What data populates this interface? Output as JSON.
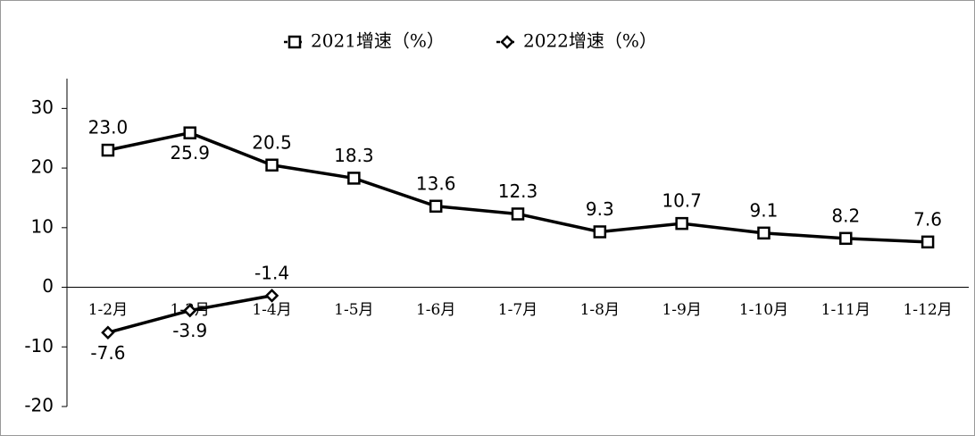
{
  "chart_data": {
    "type": "line",
    "categories": [
      "1-2月",
      "1-3月",
      "1-4月",
      "1-5月",
      "1-6月",
      "1-7月",
      "1-8月",
      "1-9月",
      "1-10月",
      "1-11月",
      "1-12月"
    ],
    "series": [
      {
        "name": "2021增速（%）",
        "color": "#000000",
        "marker": "square",
        "values": [
          23.0,
          25.9,
          20.5,
          18.3,
          13.6,
          12.3,
          9.3,
          10.7,
          9.1,
          8.2,
          7.6
        ],
        "value_labels": [
          "23.0",
          "25.9",
          "20.5",
          "18.3",
          "13.6",
          "12.3",
          "9.3",
          "10.7",
          "9.1",
          "8.2",
          "7.6"
        ]
      },
      {
        "name": "2022增速（%）",
        "color": "#000000",
        "marker": "diamond",
        "values": [
          -7.6,
          -3.9,
          -1.4,
          null,
          null,
          null,
          null,
          null,
          null,
          null,
          null
        ],
        "value_labels": [
          "-7.6",
          "-3.9",
          "-1.4",
          null,
          null,
          null,
          null,
          null,
          null,
          null,
          null
        ]
      }
    ],
    "ylim": [
      -20,
      35
    ],
    "yticks": [
      -20,
      -10,
      0,
      10,
      20,
      30
    ],
    "legend": "top"
  }
}
